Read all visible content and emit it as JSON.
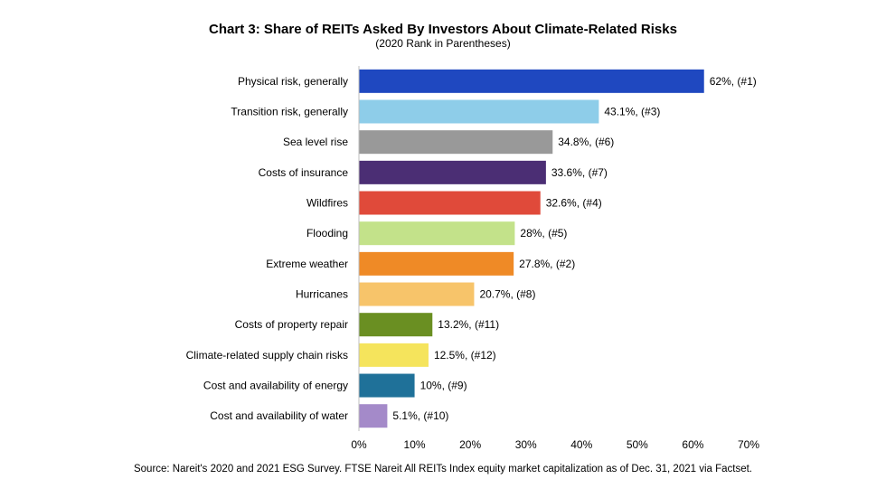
{
  "chart_data": {
    "type": "bar",
    "orientation": "horizontal",
    "title": "Chart 3: Share of REITs Asked By Investors About Climate-Related Risks",
    "subtitle": "(2020 Rank in Parentheses)",
    "categories": [
      "Physical risk, generally",
      "Transition risk, generally",
      "Sea level rise",
      "Costs of insurance",
      "Wildfires",
      "Flooding",
      "Extreme weather",
      "Hurricanes",
      "Costs of property repair",
      "Climate-related supply chain risks",
      "Cost and availability of energy",
      "Cost and availability of water"
    ],
    "values": [
      62,
      43.1,
      34.8,
      33.6,
      32.6,
      28,
      27.8,
      20.7,
      13.2,
      12.5,
      10,
      5.1
    ],
    "data_labels": [
      "62%, (#1)",
      "43.1%, (#3)",
      "34.8%, (#6)",
      "33.6%, (#7)",
      "32.6%, (#4)",
      "28%, (#5)",
      "27.8%, (#2)",
      "20.7%, (#8)",
      "13.2%, (#11)",
      "12.5%, (#12)",
      "10%, (#9)",
      "5.1%, (#10)"
    ],
    "colors": [
      "#1f48c0",
      "#8ecde9",
      "#999999",
      "#4b2e74",
      "#e04a3a",
      "#c3e28a",
      "#ef8a26",
      "#f7c46a",
      "#6a8f22",
      "#f5e45c",
      "#1f7199",
      "#a48ac9"
    ],
    "xlim": [
      0,
      70
    ],
    "xticks": [
      "0%",
      "10%",
      "20%",
      "30%",
      "40%",
      "50%",
      "60%",
      "70%"
    ],
    "xtick_values": [
      0,
      10,
      20,
      30,
      40,
      50,
      60,
      70
    ],
    "grid": false,
    "legend": "none"
  },
  "source": "Source: Nareit's 2020 and 2021 ESG Survey. FTSE Nareit All REITs Index equity market capitalization as of Dec. 31, 2021 via Factset."
}
